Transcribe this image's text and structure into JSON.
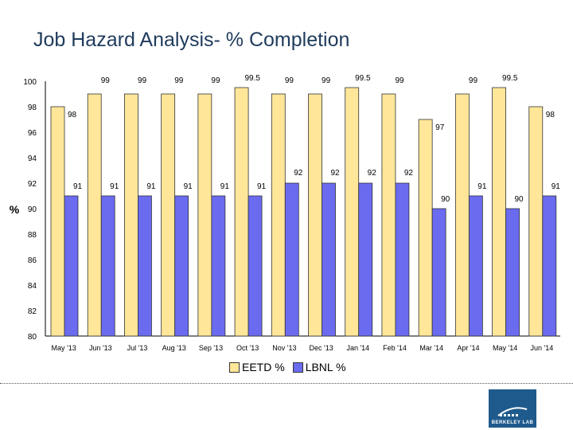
{
  "chart_data": {
    "type": "bar",
    "title": "Job Hazard Analysis- % Completion",
    "ylabel": "%",
    "xlabel": "",
    "ylim": [
      80,
      100
    ],
    "yticks": [
      80,
      82,
      84,
      86,
      88,
      90,
      92,
      94,
      96,
      98,
      100
    ],
    "categories": [
      "May '13",
      "Jun '13",
      "Jul '13",
      "Aug '13",
      "Sep '13",
      "Oct '13",
      "Nov '13",
      "Dec '13",
      "Jan '14",
      "Feb '14",
      "Mar '14",
      "Apr '14",
      "May '14",
      "Jun '14"
    ],
    "series": [
      {
        "name": "EETD %",
        "color": "#ffe699",
        "values": [
          98,
          99,
          99,
          99,
          99,
          99.5,
          99,
          99,
          99.5,
          99,
          97,
          99,
          99.5,
          98
        ]
      },
      {
        "name": "LBNL %",
        "color": "#6b6bf0",
        "values": [
          91,
          91,
          91,
          91,
          91,
          91,
          92,
          92,
          92,
          92,
          90,
          91,
          90,
          91
        ]
      }
    ],
    "legend": "bottom"
  },
  "footer": {
    "logo_text": "BERKELEY LAB"
  }
}
